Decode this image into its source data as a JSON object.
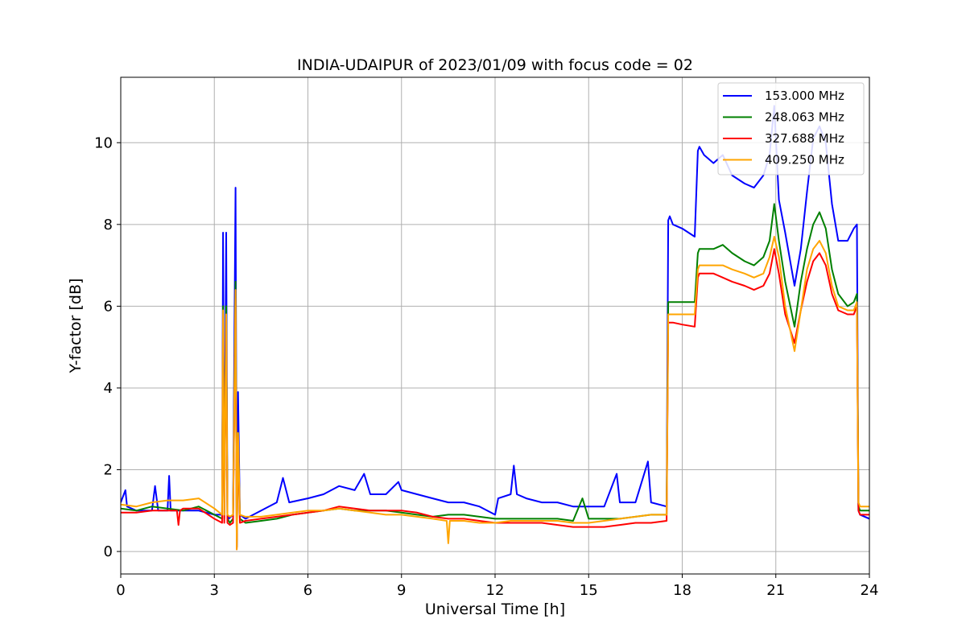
{
  "chart_data": {
    "type": "line",
    "title": "INDIA-UDAIPUR of 2023/01/09 with focus code = 02",
    "xlabel": "Universal Time [h]",
    "ylabel": "Y-factor [dB]",
    "xlim": [
      0,
      24
    ],
    "ylim": [
      -0.55,
      11.6
    ],
    "xticks": [
      0,
      3,
      6,
      9,
      12,
      15,
      18,
      21,
      24
    ],
    "yticks": [
      0,
      2,
      4,
      6,
      8,
      10
    ],
    "grid": true,
    "legend_position": "top-right",
    "series": [
      {
        "name": "153.000 MHz",
        "color": "#0000ff",
        "x": [
          0,
          0.15,
          0.2,
          0.5,
          1.0,
          1.1,
          1.2,
          1.5,
          1.55,
          1.6,
          2.0,
          2.5,
          3.0,
          3.25,
          3.28,
          3.32,
          3.38,
          3.42,
          3.46,
          3.6,
          3.68,
          3.72,
          3.76,
          3.82,
          4.0,
          4.5,
          5.0,
          5.2,
          5.4,
          6.0,
          6.5,
          7.0,
          7.5,
          7.8,
          8.0,
          8.5,
          8.9,
          9.0,
          9.5,
          10.0,
          10.5,
          11.0,
          11.5,
          12.0,
          12.1,
          12.5,
          12.6,
          12.7,
          13.0,
          13.5,
          14.0,
          14.5,
          15.0,
          15.5,
          15.9,
          16.0,
          16.5,
          16.9,
          17.0,
          17.5,
          17.55,
          17.6,
          17.7,
          18.0,
          18.4,
          18.5,
          18.55,
          18.7,
          19.0,
          19.3,
          19.6,
          20.0,
          20.3,
          20.6,
          20.8,
          20.95,
          21.1,
          21.3,
          21.6,
          21.8,
          22.0,
          22.2,
          22.4,
          22.6,
          22.8,
          23.0,
          23.3,
          23.5,
          23.6,
          23.65,
          23.7,
          24.0
        ],
        "y": [
          1.2,
          1.5,
          1.1,
          1.0,
          1.0,
          1.6,
          1.0,
          1.0,
          1.85,
          1.0,
          1.0,
          1.0,
          0.9,
          0.9,
          7.8,
          0.9,
          7.8,
          0.9,
          0.8,
          0.9,
          8.9,
          0.1,
          3.9,
          0.9,
          0.8,
          1.0,
          1.2,
          1.8,
          1.2,
          1.3,
          1.4,
          1.6,
          1.5,
          1.9,
          1.4,
          1.4,
          1.7,
          1.5,
          1.4,
          1.3,
          1.2,
          1.2,
          1.1,
          0.9,
          1.3,
          1.4,
          2.1,
          1.4,
          1.3,
          1.2,
          1.2,
          1.1,
          1.1,
          1.1,
          1.9,
          1.2,
          1.2,
          2.2,
          1.2,
          1.1,
          8.1,
          8.2,
          8.0,
          7.9,
          7.7,
          9.8,
          9.9,
          9.7,
          9.5,
          9.7,
          9.2,
          9.0,
          8.9,
          9.2,
          9.7,
          10.9,
          8.6,
          7.8,
          6.5,
          7.4,
          8.8,
          10.1,
          10.4,
          10.0,
          8.5,
          7.6,
          7.6,
          7.9,
          8.0,
          1.0,
          0.9,
          0.8
        ]
      },
      {
        "name": "248.063 MHz",
        "color": "#008000",
        "x": [
          0,
          0.5,
          1.0,
          1.5,
          2.0,
          2.5,
          3.0,
          3.25,
          3.28,
          3.32,
          3.38,
          3.42,
          3.5,
          3.6,
          3.68,
          3.72,
          3.76,
          3.82,
          4.0,
          4.5,
          5.0,
          5.5,
          6.0,
          6.5,
          7.0,
          7.5,
          8.0,
          8.5,
          9.0,
          9.5,
          10.0,
          10.5,
          11.0,
          11.5,
          12.0,
          12.5,
          13.0,
          13.5,
          14.0,
          14.5,
          14.8,
          15.0,
          15.5,
          16.0,
          16.5,
          17.0,
          17.5,
          17.55,
          17.7,
          18.0,
          18.4,
          18.5,
          18.55,
          18.7,
          19.0,
          19.3,
          19.6,
          20.0,
          20.3,
          20.6,
          20.8,
          20.95,
          21.1,
          21.3,
          21.6,
          21.8,
          22.0,
          22.2,
          22.4,
          22.6,
          22.8,
          23.0,
          23.3,
          23.5,
          23.6,
          23.65,
          23.7,
          24.0
        ],
        "y": [
          1.05,
          1.0,
          1.1,
          1.05,
          1.0,
          1.1,
          0.9,
          0.8,
          6.0,
          0.8,
          6.0,
          0.8,
          0.7,
          0.8,
          6.6,
          0.1,
          2.9,
          0.8,
          0.7,
          0.75,
          0.8,
          0.9,
          0.95,
          1.0,
          1.05,
          1.0,
          1.0,
          1.0,
          0.95,
          0.9,
          0.85,
          0.9,
          0.9,
          0.85,
          0.8,
          0.8,
          0.8,
          0.8,
          0.8,
          0.75,
          1.3,
          0.8,
          0.8,
          0.8,
          0.85,
          0.9,
          0.9,
          6.1,
          6.1,
          6.1,
          6.1,
          7.3,
          7.4,
          7.4,
          7.4,
          7.5,
          7.3,
          7.1,
          7.0,
          7.2,
          7.6,
          8.5,
          7.6,
          6.6,
          5.5,
          6.6,
          7.4,
          8.0,
          8.3,
          7.9,
          6.9,
          6.3,
          6.0,
          6.1,
          6.3,
          1.1,
          1.0,
          1.0
        ]
      },
      {
        "name": "327.688 MHz",
        "color": "#ff0000",
        "x": [
          0,
          0.5,
          1.0,
          1.5,
          1.8,
          1.85,
          1.9,
          2.0,
          2.5,
          3.0,
          3.25,
          3.28,
          3.32,
          3.38,
          3.42,
          3.5,
          3.6,
          3.68,
          3.72,
          3.76,
          3.82,
          4.0,
          4.5,
          5.0,
          5.5,
          6.0,
          6.5,
          7.0,
          7.5,
          8.0,
          8.5,
          9.0,
          9.5,
          10.0,
          10.5,
          11.0,
          11.5,
          12.0,
          12.5,
          13.0,
          13.5,
          14.0,
          14.5,
          15.0,
          15.5,
          16.0,
          16.5,
          17.0,
          17.5,
          17.55,
          17.7,
          18.0,
          18.4,
          18.5,
          18.55,
          18.7,
          19.0,
          19.3,
          19.6,
          20.0,
          20.3,
          20.6,
          20.8,
          20.95,
          21.1,
          21.3,
          21.6,
          21.8,
          22.0,
          22.2,
          22.4,
          22.6,
          22.8,
          23.0,
          23.3,
          23.5,
          23.6,
          23.65,
          23.7,
          24.0
        ],
        "y": [
          0.95,
          0.95,
          1.0,
          1.0,
          1.0,
          0.65,
          1.0,
          1.05,
          1.05,
          0.8,
          0.7,
          5.8,
          0.7,
          5.8,
          0.7,
          0.65,
          0.7,
          6.2,
          0.05,
          2.8,
          0.7,
          0.75,
          0.8,
          0.85,
          0.9,
          0.95,
          1.0,
          1.1,
          1.05,
          1.0,
          1.0,
          1.0,
          0.95,
          0.85,
          0.8,
          0.8,
          0.75,
          0.7,
          0.7,
          0.7,
          0.7,
          0.65,
          0.6,
          0.6,
          0.6,
          0.65,
          0.7,
          0.7,
          0.75,
          5.6,
          5.6,
          5.55,
          5.5,
          6.7,
          6.8,
          6.8,
          6.8,
          6.7,
          6.6,
          6.5,
          6.4,
          6.5,
          6.8,
          7.4,
          6.8,
          5.8,
          5.1,
          5.9,
          6.6,
          7.1,
          7.3,
          7.0,
          6.3,
          5.9,
          5.8,
          5.8,
          6.0,
          1.0,
          0.9,
          0.9
        ]
      },
      {
        "name": "409.250 MHz",
        "color": "#ffa500",
        "x": [
          0,
          0.5,
          1.0,
          1.5,
          2.0,
          2.5,
          3.0,
          3.25,
          3.28,
          3.32,
          3.38,
          3.42,
          3.5,
          3.6,
          3.68,
          3.72,
          3.76,
          3.82,
          4.0,
          4.5,
          5.0,
          5.5,
          6.0,
          6.5,
          7.0,
          7.5,
          8.0,
          8.5,
          9.0,
          9.5,
          10.0,
          10.45,
          10.5,
          10.55,
          11.0,
          11.5,
          12.0,
          12.5,
          13.0,
          13.5,
          14.0,
          14.5,
          15.0,
          15.5,
          16.0,
          16.5,
          17.0,
          17.5,
          17.55,
          17.7,
          18.0,
          18.4,
          18.5,
          18.55,
          18.7,
          19.0,
          19.3,
          19.6,
          20.0,
          20.3,
          20.6,
          20.8,
          20.95,
          21.1,
          21.3,
          21.6,
          21.8,
          22.0,
          22.2,
          22.4,
          22.6,
          22.8,
          23.0,
          23.3,
          23.5,
          23.6,
          23.65,
          23.7,
          24.0
        ],
        "y": [
          1.15,
          1.1,
          1.2,
          1.25,
          1.25,
          1.3,
          1.05,
          0.9,
          5.9,
          0.9,
          5.8,
          0.9,
          0.85,
          0.9,
          6.4,
          0.05,
          2.9,
          0.9,
          0.85,
          0.85,
          0.9,
          0.95,
          1.0,
          1.0,
          1.05,
          1.0,
          0.95,
          0.9,
          0.9,
          0.85,
          0.8,
          0.75,
          0.2,
          0.75,
          0.75,
          0.7,
          0.7,
          0.75,
          0.75,
          0.75,
          0.75,
          0.7,
          0.7,
          0.75,
          0.8,
          0.85,
          0.9,
          0.9,
          5.8,
          5.8,
          5.8,
          5.8,
          6.9,
          7.0,
          7.0,
          7.0,
          7.0,
          6.9,
          6.8,
          6.7,
          6.8,
          7.2,
          7.7,
          7.2,
          6.0,
          4.9,
          5.9,
          6.9,
          7.4,
          7.6,
          7.3,
          6.5,
          6.0,
          5.9,
          5.9,
          6.1,
          1.2,
          1.1,
          1.1
        ]
      }
    ]
  }
}
